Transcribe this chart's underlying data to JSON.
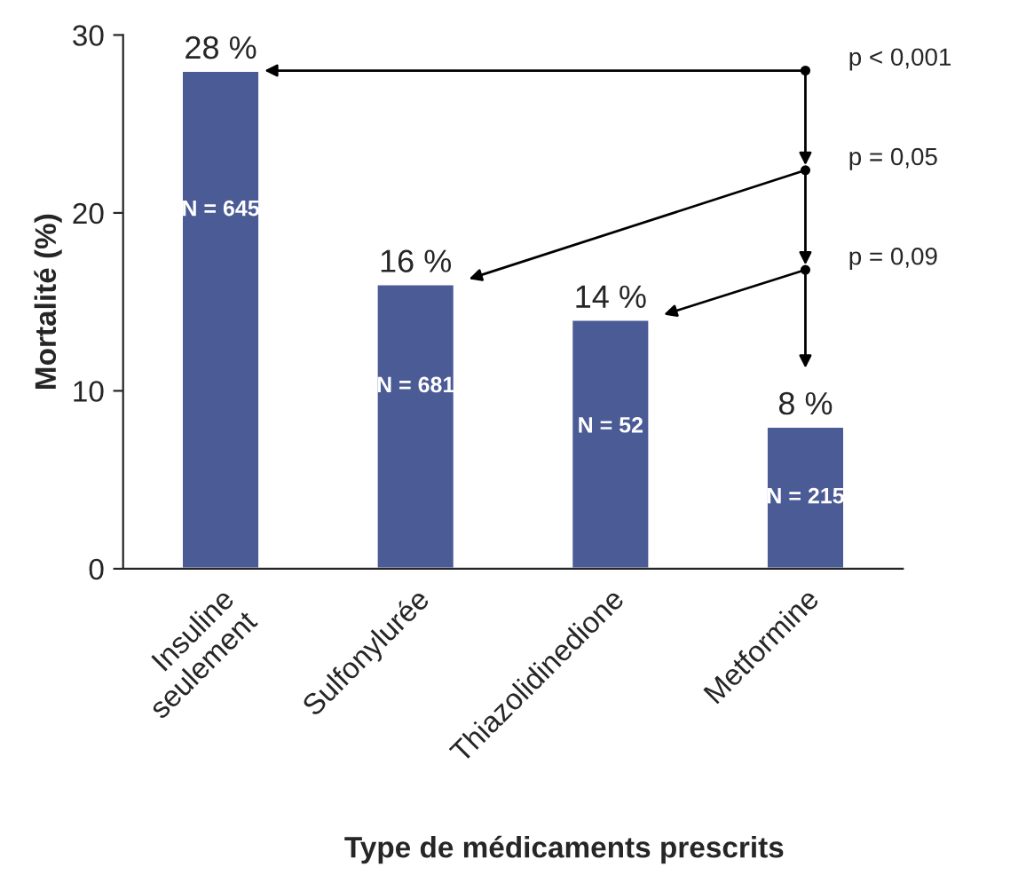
{
  "chart_data": {
    "type": "bar",
    "categories": [
      "Insuline\nseulement",
      "Sulfonylurée",
      "Thiazolidinedione",
      "Metformine"
    ],
    "values": [
      28,
      16,
      14,
      8
    ],
    "value_labels": [
      "28 %",
      "16 %",
      "14 %",
      "8 %"
    ],
    "color": "#4b5b96",
    "xlabel": "Type de médicaments prescrits",
    "ylabel": "Mortalité (%)",
    "ylim": [
      0,
      30
    ],
    "yticks": [
      0,
      10,
      20,
      30
    ],
    "grid": false,
    "annotations": [
      "N = 645",
      "N = 681",
      "N = 52",
      "N = 215",
      "p < 0,001",
      "p = 0,05",
      "p = 0,09"
    ]
  }
}
